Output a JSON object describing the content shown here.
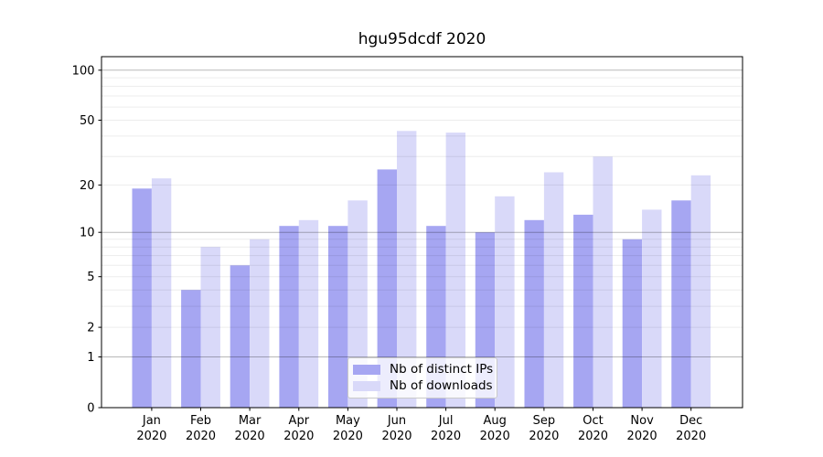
{
  "chart_data": {
    "type": "bar",
    "title": "hgu95dcdf 2020",
    "categories": [
      "Jan",
      "Feb",
      "Mar",
      "Apr",
      "May",
      "Jun",
      "Jul",
      "Aug",
      "Sep",
      "Oct",
      "Nov",
      "Dec"
    ],
    "x_tick_second_line": "2020",
    "series": [
      {
        "name": "Nb of distinct IPs",
        "color": "#a6a6f2",
        "values": [
          19,
          4,
          6,
          11,
          11,
          25,
          11,
          10,
          12,
          13,
          9,
          16
        ]
      },
      {
        "name": "Nb of downloads",
        "color": "#d9d9f9",
        "values": [
          22,
          8,
          9,
          12,
          16,
          43,
          42,
          17,
          24,
          30,
          14,
          23
        ]
      }
    ],
    "xlabel": "",
    "ylabel": "",
    "yscale": "log1p",
    "ylim": [
      0,
      121
    ],
    "yticks": [
      100,
      50,
      20,
      10,
      5,
      2,
      1,
      0
    ],
    "grid": {
      "major": [
        1,
        10,
        100
      ],
      "minor": [
        2,
        3,
        4,
        5,
        6,
        7,
        8,
        9,
        20,
        30,
        40,
        50,
        60,
        70,
        80,
        90
      ],
      "major_color": "rgba(0,0,0,0.28)",
      "minor_color": "rgba(0,0,0,0.075)"
    },
    "legend_position": "lower center",
    "spine_color": "#000000",
    "text_color": "#000000",
    "background": "#ffffff"
  }
}
